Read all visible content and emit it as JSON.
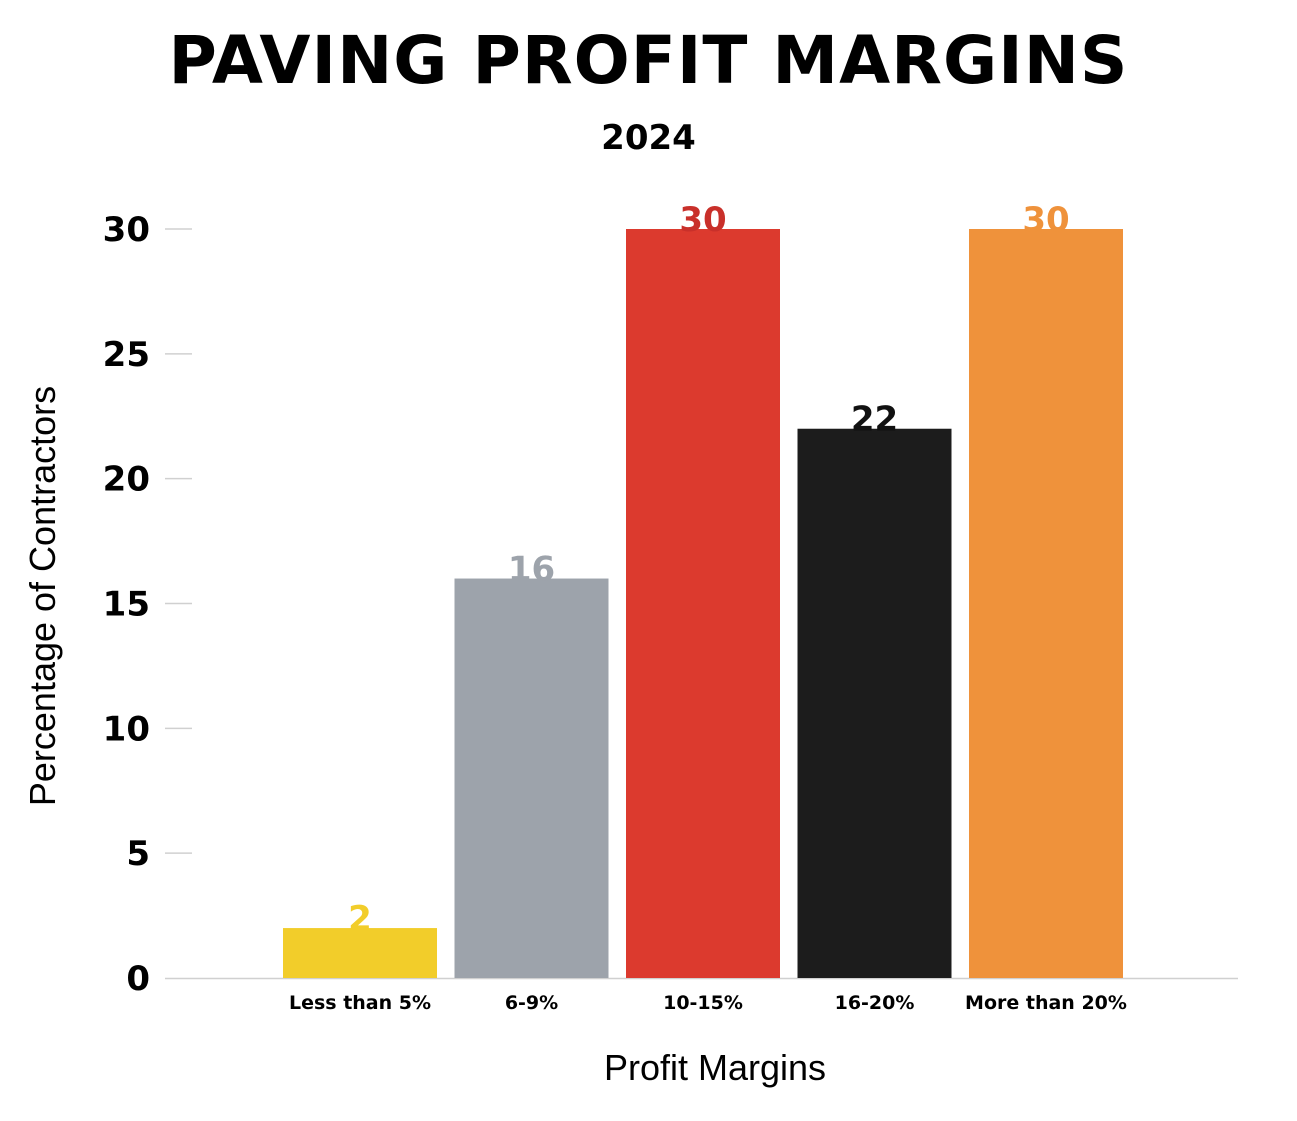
{
  "chart_data": {
    "type": "bar",
    "title": "PAVING PROFIT MARGINS",
    "subtitle": "2024",
    "xlabel": "Profit Margins",
    "ylabel": "Percentage of Contractors",
    "categories": [
      "Less than 5%",
      "6-9%",
      "10-15%",
      "16-20%",
      "More than 20%"
    ],
    "values": [
      2,
      16,
      30,
      22,
      30
    ],
    "value_labels": [
      "2",
      "16",
      "30",
      "22",
      "30"
    ],
    "colors": [
      "#f2cd2a",
      "#9da3ab",
      "#dc3a2e",
      "#1c1c1c",
      "#ef923b"
    ],
    "label_colors": [
      "#f2cd2a",
      "#9da3ab",
      "#c9302a",
      "#111111",
      "#ef923b"
    ],
    "ylim": [
      0,
      30
    ],
    "yticks": [
      "0",
      "5",
      "10",
      "15",
      "20",
      "25",
      "30"
    ],
    "grid": false
  }
}
